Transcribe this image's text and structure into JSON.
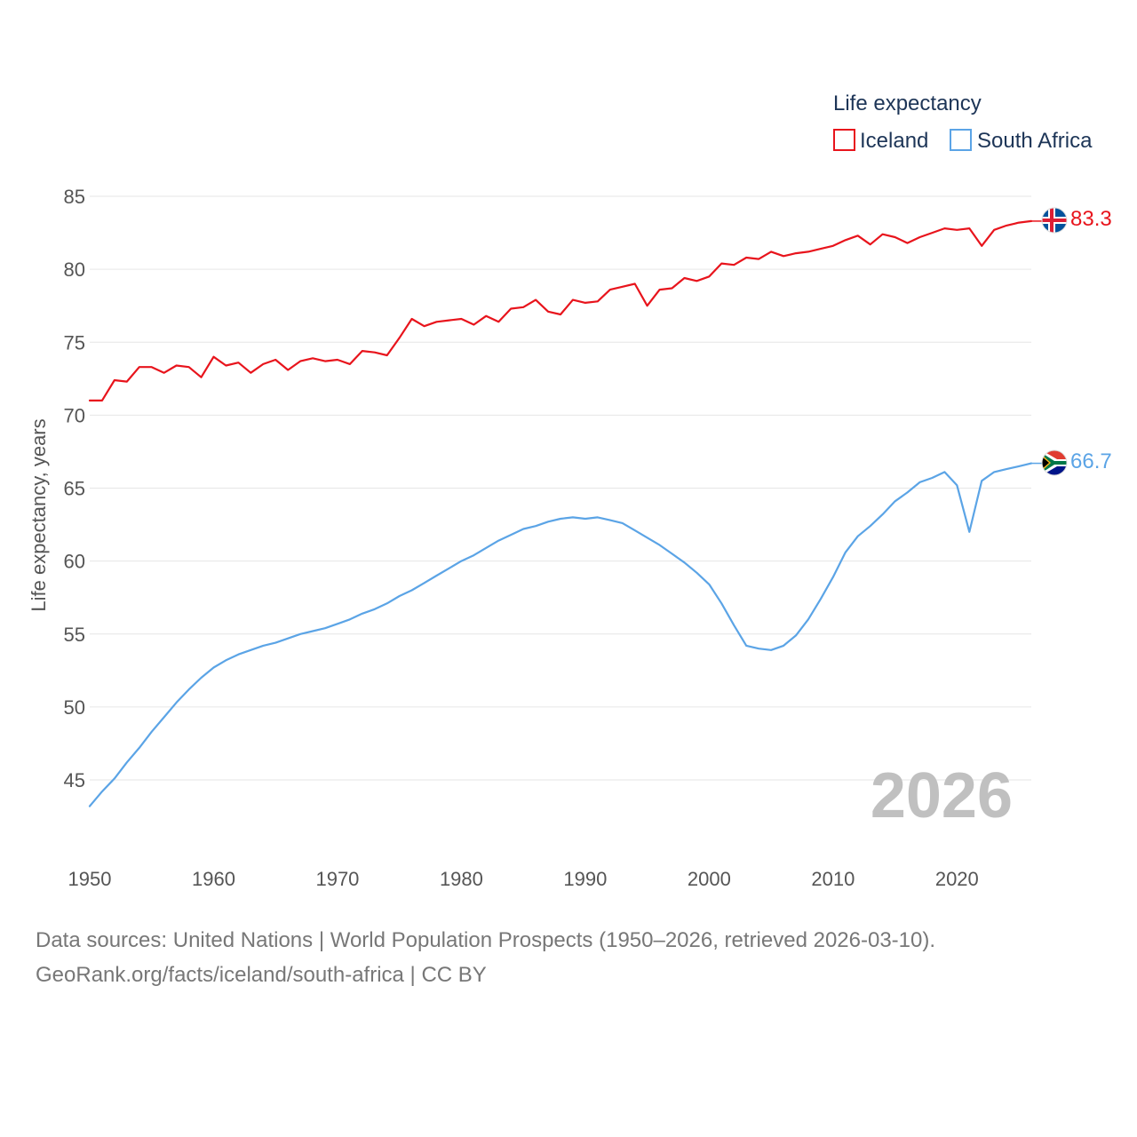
{
  "chart_data": {
    "type": "line",
    "ylabel": "Life expectancy, years",
    "xlabel": "",
    "xlim": [
      1950,
      2026
    ],
    "ylim": [
      42,
      86
    ],
    "x_ticks": [
      1950,
      1960,
      1970,
      1980,
      1990,
      2000,
      2010,
      2020
    ],
    "y_ticks": [
      45,
      50,
      55,
      60,
      65,
      70,
      75,
      80,
      85
    ],
    "grid": true,
    "legend": {
      "title": "Life expectancy",
      "position": "top-right"
    },
    "current_year": "2026",
    "years_start": 1950,
    "series": [
      {
        "name": "Iceland",
        "color": "#e8141c",
        "end_label": "83.3",
        "values": [
          71.0,
          71.0,
          72.4,
          72.3,
          73.3,
          73.3,
          72.9,
          73.4,
          73.3,
          72.6,
          74.0,
          73.4,
          73.6,
          72.9,
          73.5,
          73.8,
          73.1,
          73.7,
          73.9,
          73.7,
          73.8,
          73.5,
          74.4,
          74.3,
          74.1,
          75.3,
          76.6,
          76.1,
          76.4,
          76.5,
          76.6,
          76.2,
          76.8,
          76.4,
          77.3,
          77.4,
          77.9,
          77.1,
          76.9,
          77.9,
          77.7,
          77.8,
          78.6,
          78.8,
          79.0,
          77.5,
          78.6,
          78.7,
          79.4,
          79.2,
          79.5,
          80.4,
          80.3,
          80.8,
          80.7,
          81.2,
          80.9,
          81.1,
          81.2,
          81.4,
          81.6,
          82.0,
          82.3,
          81.7,
          82.4,
          82.2,
          81.8,
          82.2,
          82.5,
          82.8,
          82.7,
          82.8,
          81.6,
          82.7,
          83.0,
          83.2,
          83.3
        ]
      },
      {
        "name": "South Africa",
        "color": "#5ba4e6",
        "end_label": "66.7",
        "values": [
          43.2,
          44.2,
          45.1,
          46.2,
          47.2,
          48.3,
          49.3,
          50.3,
          51.2,
          52.0,
          52.7,
          53.2,
          53.6,
          53.9,
          54.2,
          54.4,
          54.7,
          55.0,
          55.2,
          55.4,
          55.7,
          56.0,
          56.4,
          56.7,
          57.1,
          57.6,
          58.0,
          58.5,
          59.0,
          59.5,
          60.0,
          60.4,
          60.9,
          61.4,
          61.8,
          62.2,
          62.4,
          62.7,
          62.9,
          63.0,
          62.9,
          63.0,
          62.8,
          62.6,
          62.1,
          61.6,
          61.1,
          60.5,
          59.9,
          59.2,
          58.4,
          57.1,
          55.6,
          54.2,
          54.0,
          53.9,
          54.2,
          54.9,
          56.0,
          57.4,
          58.9,
          60.6,
          61.7,
          62.4,
          63.2,
          64.1,
          64.7,
          65.4,
          65.7,
          66.1,
          65.2,
          62.0,
          65.5,
          66.1,
          66.3,
          66.5,
          66.7
        ]
      }
    ]
  },
  "footer": {
    "line1": "Data sources: United Nations | World Population Prospects (1950–2026, retrieved 2026-03-10).",
    "line2": "GeoRank.org/facts/iceland/south-africa | CC BY"
  }
}
